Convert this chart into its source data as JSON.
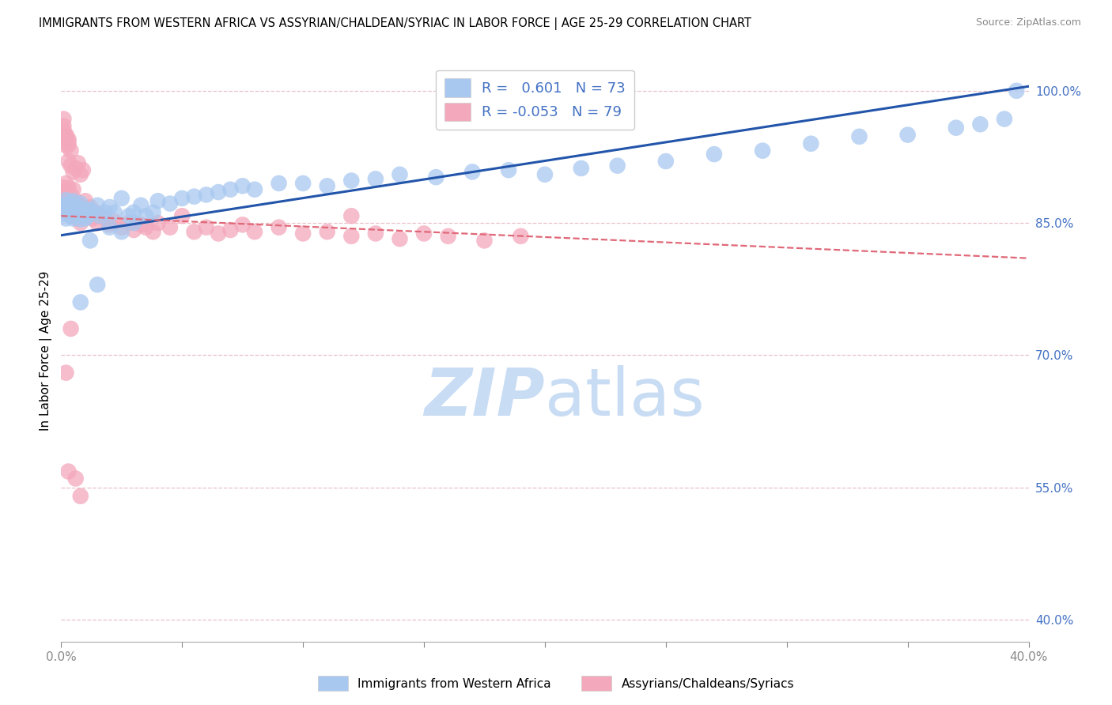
{
  "title": "IMMIGRANTS FROM WESTERN AFRICA VS ASSYRIAN/CHALDEAN/SYRIAC IN LABOR FORCE | AGE 25-29 CORRELATION CHART",
  "source": "Source: ZipAtlas.com",
  "ylabel": "In Labor Force | Age 25-29",
  "x_min": 0.0,
  "x_max": 0.4,
  "y_min": 0.375,
  "y_max": 1.035,
  "y_ticks": [
    0.4,
    0.55,
    0.7,
    0.85,
    1.0
  ],
  "y_tick_labels": [
    "40.0%",
    "55.0%",
    "70.0%",
    "85.0%",
    "100.0%"
  ],
  "x_ticks": [
    0.0,
    0.05,
    0.1,
    0.15,
    0.2,
    0.25,
    0.3,
    0.35,
    0.4
  ],
  "blue_R": 0.601,
  "blue_N": 73,
  "pink_R": -0.053,
  "pink_N": 79,
  "blue_dot_color": "#A8C8F0",
  "pink_dot_color": "#F4A8BC",
  "blue_line_color": "#2255AA",
  "pink_line_color": "#E06878",
  "grid_color": "#E8C0C8",
  "legend_label_blue": "Immigrants from Western Africa",
  "legend_label_pink": "Assyrians/Chaldeans/Syriacs",
  "watermark_zip": "ZIP",
  "watermark_atlas": "atlas",
  "watermark_color": "#C8DCF4",
  "title_fontsize": 10.5,
  "source_fontsize": 9,
  "tick_color_y": "#4472C4",
  "tick_color_x": "#888888",
  "blue_line_x0": 0.0,
  "blue_line_y0": 0.836,
  "blue_line_x1": 0.4,
  "blue_line_y1": 1.005,
  "pink_line_x0": 0.0,
  "pink_line_y0": 0.858,
  "pink_line_x1": 0.4,
  "pink_line_y1": 0.81,
  "blue_x": [
    0.001,
    0.001,
    0.002,
    0.002,
    0.002,
    0.003,
    0.003,
    0.004,
    0.004,
    0.005,
    0.005,
    0.005,
    0.006,
    0.006,
    0.007,
    0.007,
    0.008,
    0.008,
    0.008,
    0.009,
    0.01,
    0.01,
    0.011,
    0.012,
    0.013,
    0.015,
    0.016,
    0.018,
    0.02,
    0.022,
    0.025,
    0.028,
    0.03,
    0.033,
    0.035,
    0.038,
    0.04,
    0.045,
    0.05,
    0.055,
    0.06,
    0.065,
    0.07,
    0.075,
    0.08,
    0.09,
    0.1,
    0.11,
    0.12,
    0.13,
    0.14,
    0.155,
    0.17,
    0.185,
    0.2,
    0.215,
    0.23,
    0.25,
    0.27,
    0.29,
    0.31,
    0.33,
    0.35,
    0.37,
    0.38,
    0.39,
    0.395,
    0.025,
    0.03,
    0.02,
    0.015,
    0.012,
    0.008
  ],
  "blue_y": [
    0.86,
    0.87,
    0.855,
    0.868,
    0.876,
    0.862,
    0.87,
    0.858,
    0.872,
    0.865,
    0.855,
    0.875,
    0.862,
    0.87,
    0.858,
    0.868,
    0.854,
    0.862,
    0.872,
    0.86,
    0.855,
    0.865,
    0.858,
    0.865,
    0.862,
    0.87,
    0.858,
    0.862,
    0.868,
    0.862,
    0.878,
    0.858,
    0.862,
    0.87,
    0.858,
    0.862,
    0.875,
    0.872,
    0.878,
    0.88,
    0.882,
    0.885,
    0.888,
    0.892,
    0.888,
    0.895,
    0.895,
    0.892,
    0.898,
    0.9,
    0.905,
    0.902,
    0.908,
    0.91,
    0.905,
    0.912,
    0.915,
    0.92,
    0.928,
    0.932,
    0.94,
    0.948,
    0.95,
    0.958,
    0.962,
    0.968,
    1.0,
    0.84,
    0.85,
    0.845,
    0.78,
    0.83,
    0.76
  ],
  "pink_x": [
    0.001,
    0.001,
    0.002,
    0.002,
    0.002,
    0.003,
    0.003,
    0.003,
    0.004,
    0.004,
    0.005,
    0.005,
    0.005,
    0.006,
    0.006,
    0.007,
    0.007,
    0.008,
    0.008,
    0.009,
    0.01,
    0.01,
    0.011,
    0.012,
    0.013,
    0.014,
    0.015,
    0.016,
    0.018,
    0.02,
    0.022,
    0.025,
    0.028,
    0.03,
    0.033,
    0.035,
    0.038,
    0.04,
    0.045,
    0.05,
    0.055,
    0.06,
    0.065,
    0.07,
    0.075,
    0.08,
    0.09,
    0.1,
    0.11,
    0.12,
    0.13,
    0.14,
    0.15,
    0.16,
    0.175,
    0.19,
    0.003,
    0.004,
    0.005,
    0.006,
    0.007,
    0.008,
    0.009,
    0.002,
    0.003,
    0.004,
    0.001,
    0.001,
    0.002,
    0.002,
    0.003,
    0.003,
    0.001,
    0.12,
    0.002,
    0.004,
    0.006,
    0.008,
    0.003
  ],
  "pink_y": [
    0.878,
    0.89,
    0.87,
    0.882,
    0.895,
    0.862,
    0.875,
    0.89,
    0.868,
    0.882,
    0.858,
    0.872,
    0.888,
    0.862,
    0.875,
    0.855,
    0.87,
    0.85,
    0.865,
    0.858,
    0.862,
    0.875,
    0.858,
    0.868,
    0.855,
    0.862,
    0.85,
    0.858,
    0.855,
    0.848,
    0.852,
    0.845,
    0.85,
    0.842,
    0.848,
    0.845,
    0.84,
    0.85,
    0.845,
    0.858,
    0.84,
    0.845,
    0.838,
    0.842,
    0.848,
    0.84,
    0.845,
    0.838,
    0.84,
    0.835,
    0.838,
    0.832,
    0.838,
    0.835,
    0.83,
    0.835,
    0.92,
    0.915,
    0.908,
    0.912,
    0.918,
    0.905,
    0.91,
    0.938,
    0.945,
    0.932,
    0.955,
    0.96,
    0.948,
    0.95,
    0.942,
    0.938,
    0.968,
    0.858,
    0.68,
    0.73,
    0.56,
    0.54,
    0.568
  ]
}
